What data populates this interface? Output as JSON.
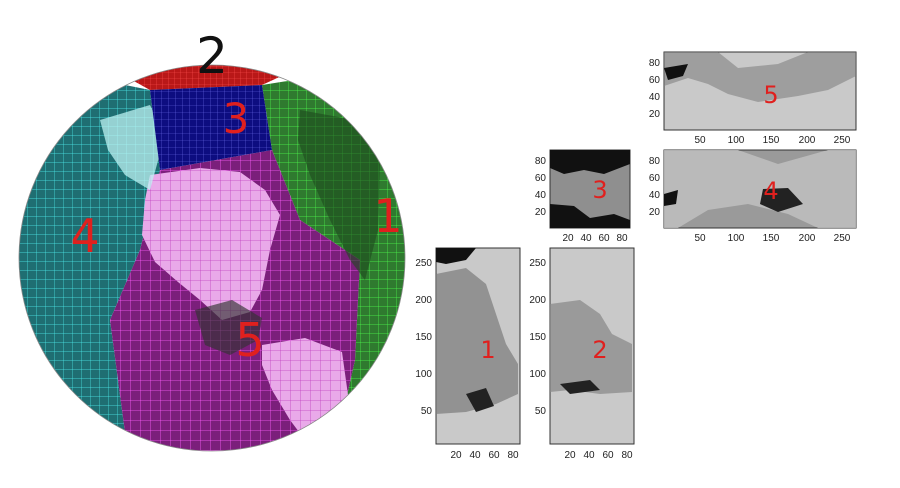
{
  "globe": {
    "labels": [
      {
        "id": "1",
        "text": "1",
        "color": "#e0201e"
      },
      {
        "id": "2",
        "text": "2",
        "color": "#111111"
      },
      {
        "id": "3",
        "text": "3",
        "color": "#e0201e"
      },
      {
        "id": "4",
        "text": "4",
        "color": "#e0201e"
      },
      {
        "id": "5",
        "text": "5",
        "color": "#e0201e"
      }
    ],
    "face_colors": {
      "face1": "#1fd61f",
      "face2": "#e6231e",
      "face3": "#1a1a9e",
      "face4": "#1ec8c8",
      "face5": "#d01ed0"
    }
  },
  "panels": [
    {
      "id": "5",
      "label": "5",
      "xticks": [
        "50",
        "100",
        "150",
        "200",
        "250"
      ],
      "yticks": [
        "80",
        "60",
        "40",
        "20"
      ]
    },
    {
      "id": "4",
      "label": "4",
      "xticks": [
        "50",
        "100",
        "150",
        "200",
        "250"
      ],
      "yticks": [
        "80",
        "60",
        "40",
        "20"
      ]
    },
    {
      "id": "3",
      "label": "3",
      "xticks": [
        "20",
        "40",
        "60",
        "80"
      ],
      "yticks": [
        "80",
        "60",
        "40",
        "20"
      ]
    },
    {
      "id": "1",
      "label": "1",
      "xticks": [
        "20",
        "40",
        "60",
        "80"
      ],
      "yticks": [
        "250",
        "200",
        "150",
        "100",
        "50"
      ]
    },
    {
      "id": "2",
      "label": "2",
      "xticks": [
        "20",
        "40",
        "60",
        "80"
      ],
      "yticks": [
        "250",
        "200",
        "150",
        "100",
        "50"
      ]
    }
  ]
}
